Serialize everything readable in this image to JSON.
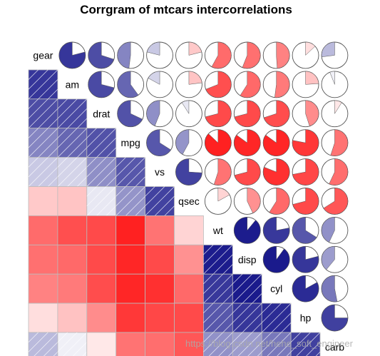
{
  "watermark": "https://blog.csdn.net/hehe_soft_engineer",
  "chart_data": {
    "type": "heatmap",
    "title": "Corrgram of mtcars intercorrelations",
    "variables": [
      "gear",
      "am",
      "drat",
      "mpg",
      "vs",
      "qsec",
      "wt",
      "disp",
      "cyl",
      "hp",
      "carb"
    ],
    "lower_panel": "shade",
    "upper_panel": "pie",
    "colors": {
      "positive": "#00007F",
      "negative": "#FF0000",
      "neutral": "#FFFFFF",
      "grid": "#BBBBBB"
    },
    "correlations": [
      [
        1.0,
        0.79,
        0.7,
        0.48,
        0.21,
        -0.21,
        -0.58,
        -0.56,
        -0.49,
        -0.13,
        0.27
      ],
      [
        0.79,
        1.0,
        0.71,
        0.6,
        0.17,
        -0.23,
        -0.69,
        -0.59,
        -0.52,
        -0.24,
        0.06
      ],
      [
        0.7,
        0.71,
        1.0,
        0.68,
        0.44,
        0.09,
        -0.71,
        -0.71,
        -0.7,
        -0.45,
        -0.09
      ],
      [
        0.48,
        0.6,
        0.68,
        1.0,
        0.66,
        0.42,
        -0.87,
        -0.85,
        -0.85,
        -0.78,
        -0.55
      ],
      [
        0.21,
        0.17,
        0.44,
        0.66,
        1.0,
        0.74,
        -0.55,
        -0.71,
        -0.81,
        -0.72,
        -0.57
      ],
      [
        -0.21,
        -0.23,
        0.09,
        0.42,
        0.74,
        1.0,
        -0.17,
        -0.43,
        -0.59,
        -0.71,
        -0.66
      ],
      [
        -0.58,
        -0.69,
        -0.71,
        -0.87,
        -0.55,
        -0.17,
        1.0,
        0.89,
        0.78,
        0.66,
        0.43
      ],
      [
        -0.56,
        -0.59,
        -0.71,
        -0.85,
        -0.71,
        -0.43,
        0.89,
        1.0,
        0.9,
        0.79,
        0.39
      ],
      [
        -0.49,
        -0.52,
        -0.7,
        -0.85,
        -0.81,
        -0.59,
        0.78,
        0.9,
        1.0,
        0.83,
        0.53
      ],
      [
        -0.13,
        -0.24,
        -0.45,
        -0.78,
        -0.72,
        -0.71,
        0.66,
        0.79,
        0.83,
        1.0,
        0.75
      ],
      [
        0.27,
        0.06,
        -0.09,
        -0.55,
        -0.57,
        -0.66,
        0.43,
        0.39,
        0.53,
        0.75,
        1.0
      ]
    ]
  }
}
